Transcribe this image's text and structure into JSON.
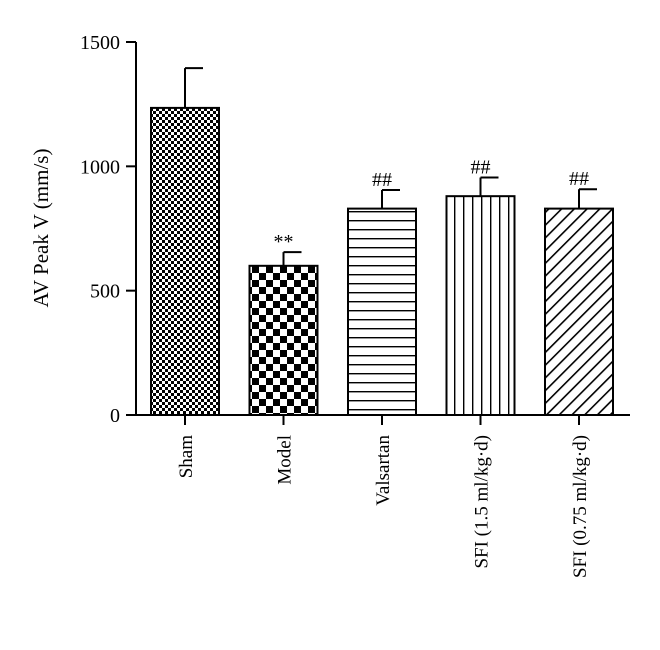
{
  "chart_data": {
    "type": "bar",
    "title": "",
    "xlabel": "",
    "ylabel": "AV Peak V (mm/s)",
    "ylim": [
      0,
      1500
    ],
    "yticks": [
      0,
      500,
      1000,
      1500
    ],
    "grid": false,
    "legend": "none",
    "categories": [
      "Sham",
      "Model",
      "Valsartan",
      "SFI (1.5 ml/kg·d)",
      "SFI (0.75 ml/kg·d)"
    ],
    "values": [
      1235,
      600,
      830,
      880,
      830
    ],
    "errors": [
      160,
      55,
      75,
      75,
      78
    ],
    "annotations": [
      "",
      "**",
      "##",
      "##",
      "##"
    ],
    "patterns": [
      "fine-checker",
      "coarse-checker",
      "horizontal-lines",
      "vertical-lines",
      "diagonal-lines"
    ],
    "colors": {
      "bar_fill": "#ffffff",
      "ink": "#000000"
    }
  }
}
